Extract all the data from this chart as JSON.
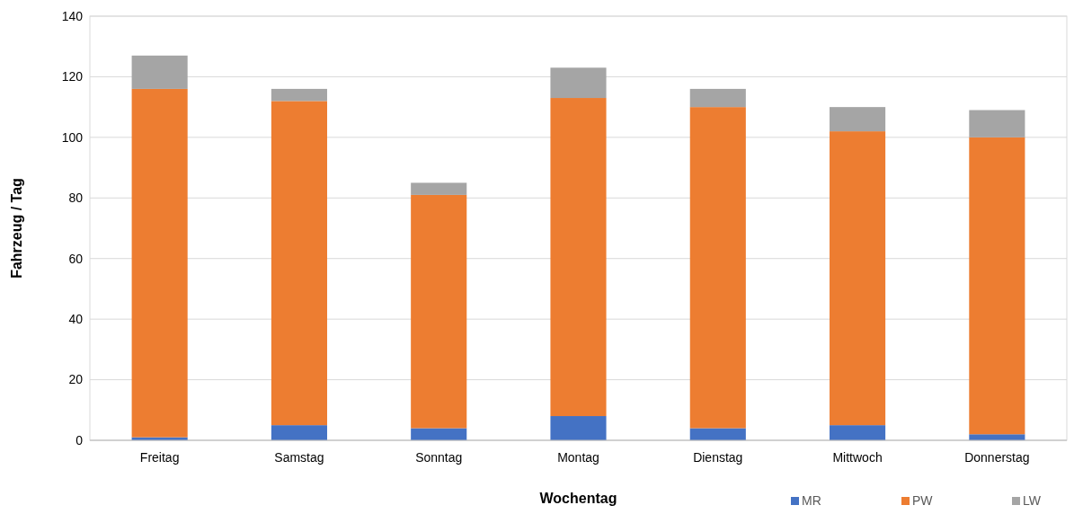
{
  "chart_data": {
    "type": "bar",
    "stacked": true,
    "xlabel": "Wochentag",
    "ylabel": "Fahrzeug / Tag",
    "categories": [
      "Freitag",
      "Samstag",
      "Sonntag",
      "Montag",
      "Dienstag",
      "Mittwoch",
      "Donnerstag"
    ],
    "series": [
      {
        "name": "MR",
        "color": "#4472c4",
        "values": [
          1,
          5,
          4,
          8,
          4,
          5,
          2
        ]
      },
      {
        "name": "PW",
        "color": "#ed7d31",
        "values": [
          115,
          107,
          77,
          105,
          106,
          97,
          98
        ]
      },
      {
        "name": "LW",
        "color": "#a5a5a5",
        "values": [
          11,
          4,
          4,
          10,
          6,
          8,
          9
        ]
      }
    ],
    "ylim": [
      0,
      140
    ],
    "yticks": [
      0,
      20,
      40,
      60,
      80,
      100,
      120,
      140
    ],
    "grid": "y",
    "legend": "bottom right"
  }
}
